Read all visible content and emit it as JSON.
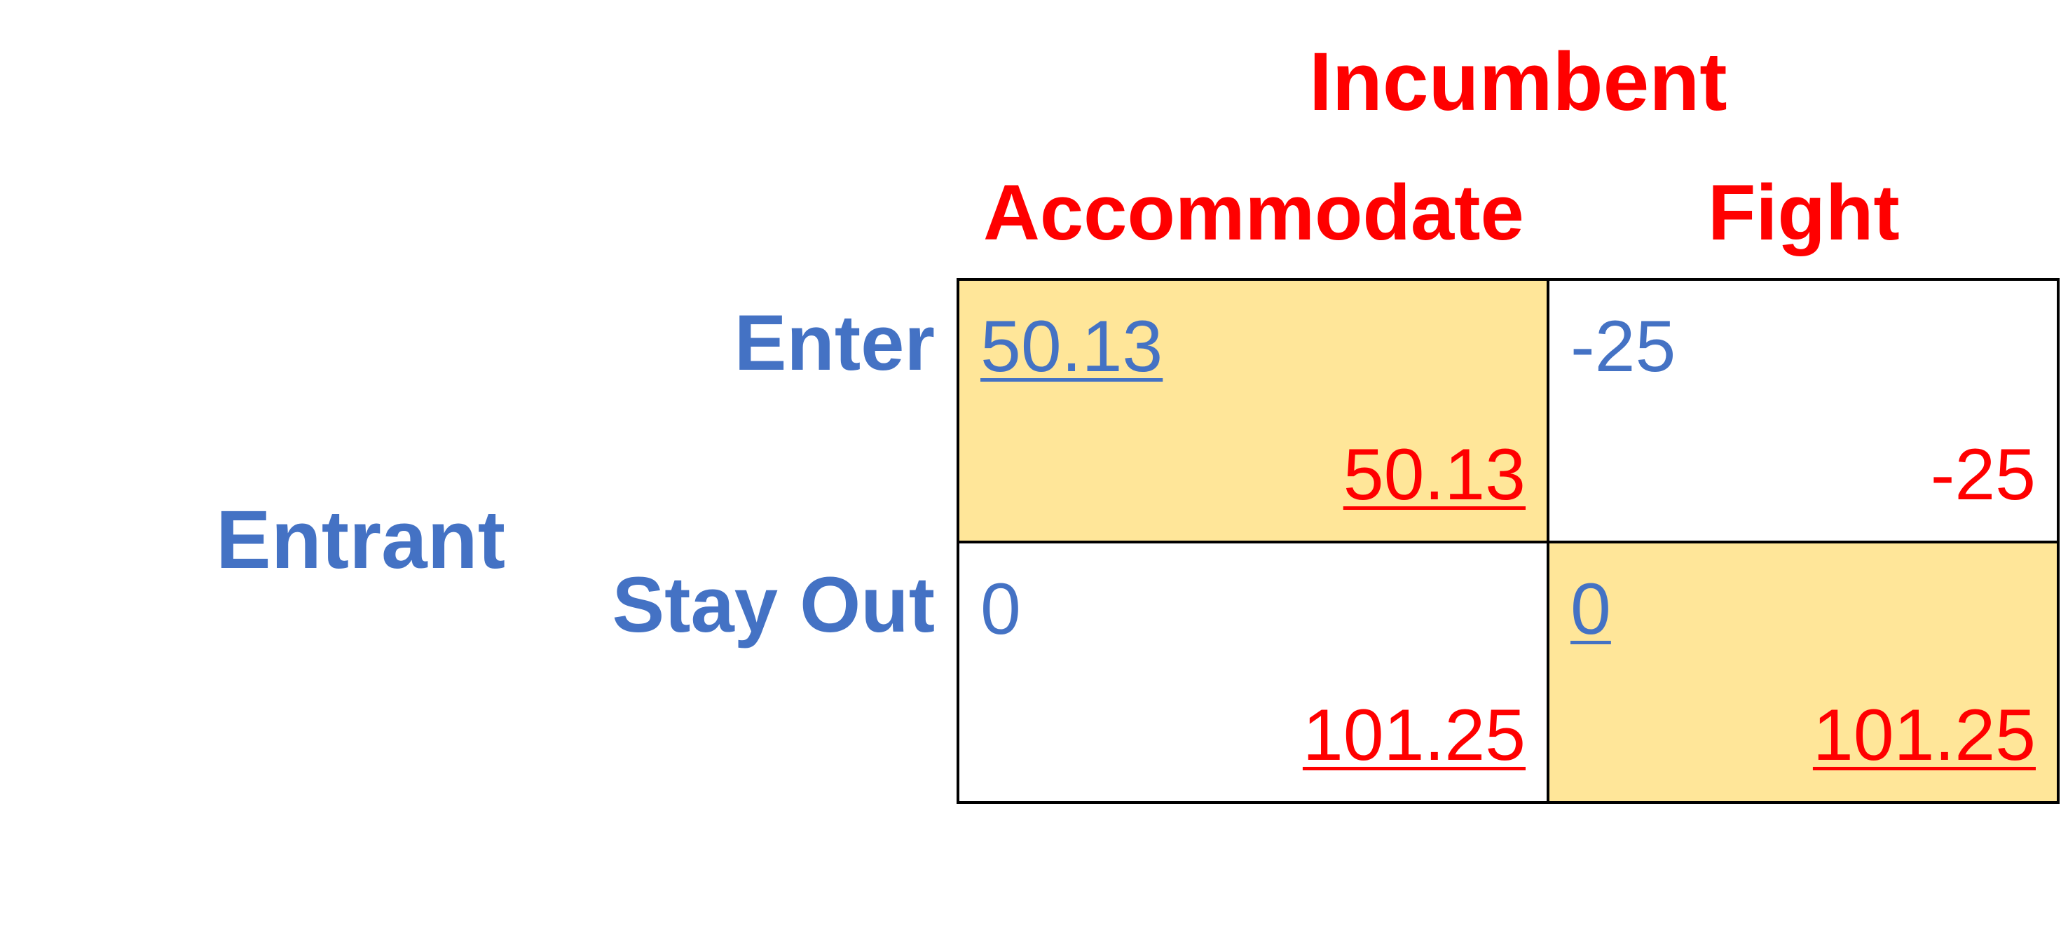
{
  "players": {
    "column": "Incumbent",
    "row": "Entrant"
  },
  "column_strategies": [
    "Accommodate",
    "Fight"
  ],
  "row_strategies": [
    "Enter",
    "Stay Out"
  ],
  "cells": [
    [
      {
        "row_payoff": "50.13",
        "col_payoff": "50.13",
        "row_best": true,
        "col_best": true,
        "highlighted": true
      },
      {
        "row_payoff": "-25",
        "col_payoff": "-25",
        "row_best": false,
        "col_best": false,
        "highlighted": false
      }
    ],
    [
      {
        "row_payoff": "0",
        "col_payoff": "101.25",
        "row_best": false,
        "col_best": true,
        "highlighted": false
      },
      {
        "row_payoff": "0",
        "col_payoff": "101.25",
        "row_best": true,
        "col_best": true,
        "highlighted": true
      }
    ]
  ],
  "colors": {
    "row_player": "#4472c4",
    "column_player": "#ff0000",
    "highlight": "#ffe699",
    "grid": "#000000"
  }
}
